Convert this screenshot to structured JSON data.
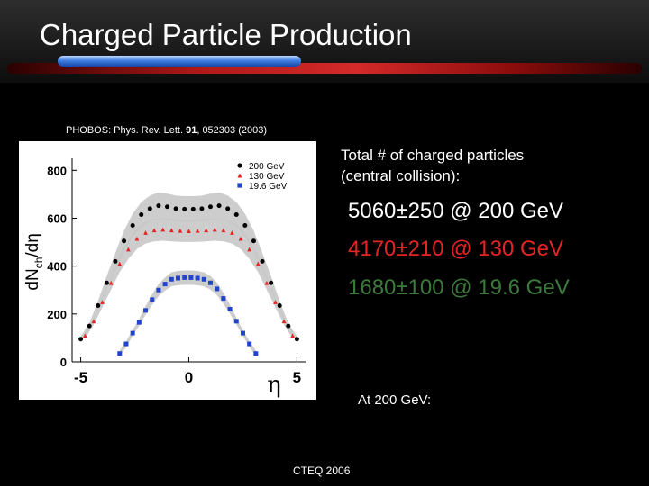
{
  "slide": {
    "title": "Charged Particle Production",
    "reference_prefix": "PHOBOS: Phys. Rev. Lett. ",
    "reference_volume": "91",
    "reference_suffix": ", 052303 (2003)",
    "total_line1": "Total # of charged particles",
    "total_line2": "(central collision):",
    "value_200": "5060±250 @ 200 GeV",
    "value_130": "4170±210 @ 130 GeV",
    "value_196": "1680±100 @ 19.6 GeV",
    "at_200": "At 200 GeV:",
    "footer": "CTEQ 2006"
  },
  "colors": {
    "background": "#000000",
    "value_200": "#ffffff",
    "value_130": "#e52424",
    "value_196": "#3c7a3c",
    "series_200": "#000000",
    "series_130": "#e52424",
    "series_196": "#2244cc",
    "band": "#c8c8c8"
  },
  "chart_data": {
    "type": "scatter",
    "ylabel_main": "dN",
    "ylabel_sub": "ch",
    "ylabel_tail": "/dη",
    "xlabel": "η",
    "xlim": [
      -5.4,
      5.4
    ],
    "ylim": [
      0,
      820
    ],
    "xticks": [
      -5,
      0,
      5
    ],
    "xtick_labels": [
      "-5",
      "0",
      "5"
    ],
    "yticks": [
      0,
      200,
      400,
      600,
      800
    ],
    "ytick_labels": [
      "0",
      "200",
      "400",
      "600",
      "800"
    ],
    "legend_position": "top-right",
    "series": [
      {
        "name": "200 GeV",
        "marker": "circle",
        "color": "#000000",
        "x": [
          -5.0,
          -4.6,
          -4.2,
          -3.8,
          -3.4,
          -3.0,
          -2.6,
          -2.2,
          -1.8,
          -1.4,
          -1.0,
          -0.6,
          -0.2,
          0.2,
          0.6,
          1.0,
          1.4,
          1.8,
          2.2,
          2.6,
          3.0,
          3.4,
          3.8,
          4.2,
          4.6,
          5.0
        ],
        "y": [
          95,
          150,
          235,
          330,
          420,
          505,
          570,
          615,
          640,
          652,
          648,
          640,
          638,
          638,
          640,
          648,
          652,
          640,
          615,
          570,
          505,
          420,
          330,
          235,
          150,
          95
        ]
      },
      {
        "name": "130 GeV",
        "marker": "triangle",
        "color": "#e52424",
        "x": [
          -4.8,
          -4.4,
          -4.0,
          -3.6,
          -3.2,
          -2.8,
          -2.4,
          -2.0,
          -1.6,
          -1.2,
          -0.8,
          -0.4,
          0.0,
          0.4,
          0.8,
          1.2,
          1.6,
          2.0,
          2.4,
          2.8,
          3.2,
          3.6,
          4.0,
          4.4,
          4.8
        ],
        "y": [
          110,
          170,
          250,
          330,
          410,
          470,
          515,
          540,
          550,
          553,
          550,
          548,
          547,
          548,
          550,
          553,
          550,
          540,
          515,
          470,
          410,
          330,
          250,
          170,
          110
        ]
      },
      {
        "name": "19.6 GeV",
        "marker": "square",
        "color": "#2244cc",
        "x": [
          -3.2,
          -2.9,
          -2.6,
          -2.3,
          -2.0,
          -1.7,
          -1.4,
          -1.1,
          -0.8,
          -0.5,
          -0.2,
          0.1,
          0.4,
          0.7,
          1.0,
          1.3,
          1.6,
          1.9,
          2.2,
          2.5,
          2.8,
          3.1
        ],
        "y": [
          35,
          75,
          120,
          165,
          215,
          260,
          300,
          325,
          345,
          350,
          352,
          352,
          350,
          345,
          330,
          305,
          265,
          220,
          170,
          120,
          75,
          35
        ]
      }
    ]
  }
}
